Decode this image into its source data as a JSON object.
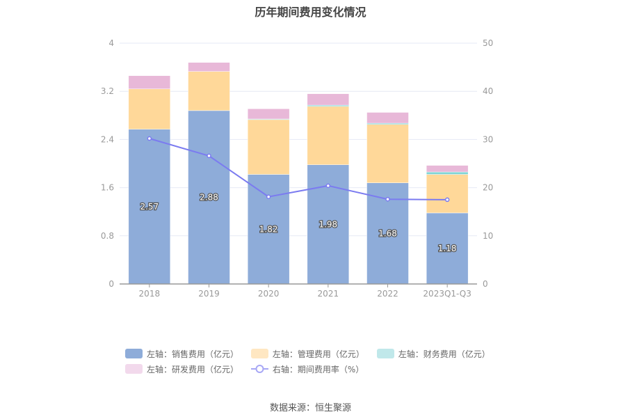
{
  "chart_data": {
    "type": "bar",
    "title": "历年期间费用变化情况",
    "categories": [
      "2018",
      "2019",
      "2020",
      "2021",
      "2022",
      "2023Q1-Q3"
    ],
    "left_axis": {
      "ylim": [
        0,
        4
      ],
      "ticks": [
        "0",
        "0.8",
        "1.6",
        "2.4",
        "3.2",
        "4"
      ],
      "tick_values": [
        0,
        0.8,
        1.6,
        2.4,
        3.2,
        4
      ]
    },
    "right_axis": {
      "ylim": [
        0,
        50
      ],
      "ticks": [
        "0",
        "10",
        "20",
        "30",
        "40",
        "50"
      ],
      "tick_values": [
        0,
        10,
        20,
        30,
        40,
        50
      ]
    },
    "series": [
      {
        "name": "左轴：销售费用（亿元）",
        "type": "bar",
        "axis": "left",
        "color": "#8eacd9",
        "values": [
          2.57,
          2.88,
          1.82,
          1.98,
          1.68,
          1.18
        ],
        "labels": [
          "2.57",
          "2.88",
          "1.82",
          "1.98",
          "1.68",
          "1.18"
        ]
      },
      {
        "name": "左轴：管理费用（亿元）",
        "type": "bar",
        "axis": "left",
        "color": "#ffd899",
        "values": [
          0.67,
          0.65,
          0.91,
          0.97,
          0.97,
          0.64
        ]
      },
      {
        "name": "左轴：财务费用（亿元）",
        "type": "bar",
        "axis": "left",
        "color": "#7fd4d4",
        "values": [
          0.0,
          0.0,
          0.01,
          0.02,
          0.02,
          0.04
        ]
      },
      {
        "name": "左轴：研发费用（亿元）",
        "type": "bar",
        "axis": "left",
        "color": "#e8b8d8",
        "values": [
          0.22,
          0.15,
          0.17,
          0.19,
          0.18,
          0.11
        ]
      },
      {
        "name": "右轴：期间费用率（%）",
        "type": "line",
        "axis": "right",
        "color": "#7b7bf0",
        "values": [
          30.2,
          26.6,
          18.1,
          20.4,
          17.6,
          17.5
        ]
      }
    ],
    "legend_position": "bottom",
    "grid": true
  },
  "legend": [
    {
      "label": "左轴：销售费用（亿元）",
      "color": "#8eacd9",
      "kind": "box"
    },
    {
      "label": "左轴：管理费用（亿元）",
      "color": "#ffe7c2",
      "kind": "box"
    },
    {
      "label": "左轴：财务费用（亿元）",
      "color": "#c0e8ea",
      "kind": "box"
    },
    {
      "label": "左轴：研发费用（亿元）",
      "color": "#f2d9ec",
      "kind": "box"
    },
    {
      "label": "右轴：期间费用率（%）",
      "color": "#a7a7f5",
      "kind": "line"
    }
  ],
  "source": "数据来源：恒生聚源"
}
